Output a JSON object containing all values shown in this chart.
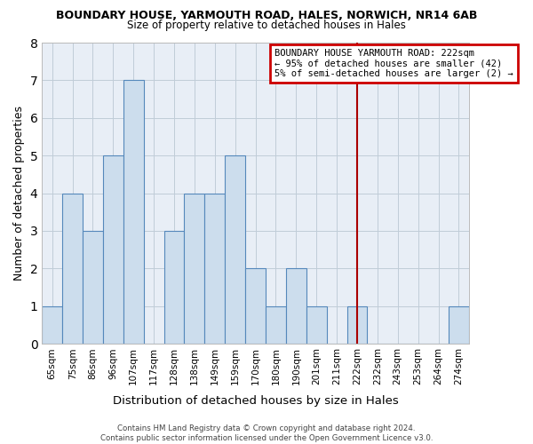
{
  "title": "BOUNDARY HOUSE, YARMOUTH ROAD, HALES, NORWICH, NR14 6AB",
  "subtitle": "Size of property relative to detached houses in Hales",
  "xlabel": "Distribution of detached houses by size in Hales",
  "ylabel": "Number of detached properties",
  "bin_labels": [
    "65sqm",
    "75sqm",
    "86sqm",
    "96sqm",
    "107sqm",
    "117sqm",
    "128sqm",
    "138sqm",
    "149sqm",
    "159sqm",
    "170sqm",
    "180sqm",
    "190sqm",
    "201sqm",
    "211sqm",
    "222sqm",
    "232sqm",
    "243sqm",
    "253sqm",
    "264sqm",
    "274sqm"
  ],
  "bar_heights": [
    1,
    4,
    3,
    5,
    7,
    0,
    3,
    4,
    4,
    5,
    2,
    1,
    2,
    1,
    0,
    1,
    0,
    0,
    0,
    0,
    1
  ],
  "bar_color": "#ccdded",
  "bar_edge_color": "#5588bb",
  "plot_bg_color": "#e8eef6",
  "ylim": [
    0,
    8
  ],
  "yticks": [
    0,
    1,
    2,
    3,
    4,
    5,
    6,
    7,
    8
  ],
  "vline_x": 15,
  "vline_color": "#aa0000",
  "annotation_title": "BOUNDARY HOUSE YARMOUTH ROAD: 222sqm",
  "annotation_line1": "← 95% of detached houses are smaller (42)",
  "annotation_line2": "5% of semi-detached houses are larger (2) →",
  "annotation_box_color": "#cc0000",
  "footer_line1": "Contains HM Land Registry data © Crown copyright and database right 2024.",
  "footer_line2": "Contains public sector information licensed under the Open Government Licence v3.0.",
  "background_color": "#ffffff",
  "grid_color": "#c0ccd8"
}
